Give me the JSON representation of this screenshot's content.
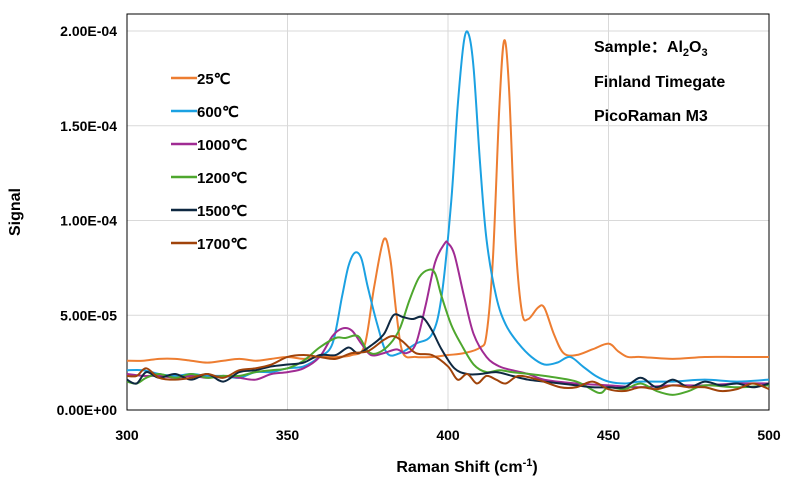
{
  "chart_data": {
    "type": "line",
    "title": "",
    "xlabel": {
      "main": "Raman Shift (cm",
      "sup": "-1",
      "end": ")"
    },
    "ylabel": "Signal",
    "xlim": [
      300,
      500
    ],
    "ylim": [
      0,
      0.000209
    ],
    "y_unit": 1e-05,
    "grid": true,
    "legend_position": "top-left",
    "x_ticks": [
      300,
      350,
      400,
      450,
      500
    ],
    "x_tick_labels": [
      "300",
      "350",
      "400",
      "450",
      "500"
    ],
    "y_ticks": [
      0,
      5e-05,
      0.0001,
      0.00015,
      0.0002
    ],
    "y_tick_labels": [
      "0.00E+00",
      "5.00E-05",
      "1.00E-04",
      "1.50E-04",
      "2.00E-04"
    ],
    "annotation": {
      "sample_prefix": "Sample：Al",
      "sub1": "2",
      "mid": "O",
      "sub2": "3",
      "line2": "Finland Timegate",
      "line3": "PicoRaman M3"
    },
    "series": [
      {
        "name": "25℃",
        "color": "#ED7D31",
        "x": [
          300,
          305,
          310,
          315,
          320,
          325,
          330,
          335,
          340,
          345,
          350,
          355,
          360,
          365,
          370,
          374,
          377,
          380,
          382,
          384,
          386,
          390,
          395,
          400,
          405,
          410,
          412,
          414,
          416,
          417.5,
          419,
          421,
          423,
          425,
          428,
          430,
          433,
          436,
          440,
          445,
          450,
          453,
          456,
          460,
          470,
          480,
          490,
          500
        ],
        "y": [
          2.6,
          2.6,
          2.7,
          2.7,
          2.6,
          2.5,
          2.6,
          2.7,
          2.6,
          2.7,
          2.8,
          2.7,
          2.8,
          2.8,
          2.9,
          3.4,
          6.5,
          9.0,
          8.0,
          5.0,
          3.0,
          2.8,
          2.8,
          2.9,
          3.0,
          3.3,
          4.0,
          8.0,
          16.0,
          19.5,
          17.0,
          9.0,
          5.2,
          4.8,
          5.4,
          5.4,
          4.0,
          3.0,
          2.9,
          3.2,
          3.5,
          3.1,
          2.8,
          2.8,
          2.7,
          2.8,
          2.8,
          2.8
        ]
      },
      {
        "name": "600℃",
        "color": "#1BA1E2",
        "x": [
          300,
          305,
          310,
          315,
          320,
          325,
          330,
          335,
          340,
          345,
          350,
          355,
          360,
          364,
          367,
          369,
          371,
          373,
          375,
          378,
          381,
          385,
          390,
          395,
          398,
          401,
          403,
          405,
          406.5,
          408,
          410,
          412,
          415,
          418,
          422,
          426,
          430,
          434,
          438,
          442,
          446,
          450,
          455,
          460,
          470,
          480,
          490,
          500
        ],
        "y": [
          2.1,
          2.1,
          1.9,
          1.8,
          1.9,
          1.8,
          1.8,
          1.7,
          2.0,
          2.0,
          2.2,
          2.3,
          2.8,
          3.5,
          6.0,
          7.6,
          8.3,
          8.0,
          6.5,
          4.5,
          3.0,
          3.0,
          3.5,
          4.0,
          6.0,
          11.0,
          16.0,
          19.5,
          19.8,
          18.0,
          13.0,
          9.0,
          6.0,
          4.5,
          3.5,
          2.8,
          2.4,
          2.5,
          2.8,
          2.3,
          1.8,
          1.5,
          1.4,
          1.5,
          1.5,
          1.6,
          1.5,
          1.6
        ]
      },
      {
        "name": "1000℃",
        "color": "#A02B93",
        "x": [
          300,
          305,
          310,
          315,
          320,
          325,
          330,
          335,
          340,
          345,
          350,
          355,
          360,
          364,
          367,
          370,
          373,
          376,
          380,
          384,
          387,
          390,
          393,
          396,
          399,
          400,
          402,
          405,
          408,
          412,
          416,
          420,
          425,
          430,
          440,
          450,
          460,
          470,
          480,
          490,
          500
        ],
        "y": [
          1.9,
          1.8,
          1.8,
          1.7,
          1.8,
          1.7,
          1.8,
          1.7,
          1.6,
          1.9,
          2.0,
          2.2,
          2.8,
          3.9,
          4.3,
          4.2,
          3.5,
          2.9,
          3.0,
          3.2,
          3.0,
          3.5,
          5.5,
          7.8,
          8.8,
          8.8,
          8.2,
          6.0,
          4.0,
          2.8,
          2.3,
          2.1,
          1.9,
          1.6,
          1.4,
          1.3,
          1.2,
          1.3,
          1.3,
          1.4,
          1.4
        ]
      },
      {
        "name": "1200℃",
        "color": "#4EA72E",
        "x": [
          300,
          303,
          306,
          310,
          315,
          320,
          325,
          330,
          335,
          340,
          345,
          350,
          355,
          360,
          365,
          368,
          372,
          375,
          378,
          382,
          385,
          388,
          391,
          394,
          396,
          398,
          401,
          404,
          408,
          412,
          416,
          420,
          430,
          440,
          447,
          450,
          455,
          460,
          465,
          470,
          475,
          480,
          490,
          500
        ],
        "y": [
          1.5,
          1.4,
          1.7,
          1.9,
          1.7,
          1.9,
          1.7,
          1.8,
          1.8,
          2.0,
          2.1,
          2.2,
          2.6,
          3.3,
          3.8,
          3.8,
          3.9,
          3.1,
          3.0,
          3.5,
          4.3,
          5.8,
          7.0,
          7.4,
          7.2,
          6.0,
          4.5,
          3.5,
          2.4,
          2.0,
          2.1,
          2.0,
          1.8,
          1.5,
          0.9,
          1.2,
          1.1,
          1.4,
          1.0,
          0.8,
          1.0,
          1.3,
          1.2,
          1.3
        ]
      },
      {
        "name": "1500℃",
        "color": "#0E2841",
        "x": [
          300,
          303,
          306,
          310,
          315,
          320,
          325,
          330,
          335,
          340,
          345,
          350,
          355,
          360,
          365,
          369,
          372,
          376,
          380,
          383,
          386,
          389,
          392,
          395,
          398,
          402,
          406,
          410,
          415,
          420,
          425,
          430,
          435,
          440,
          445,
          450,
          455,
          460,
          465,
          470,
          475,
          480,
          485,
          490,
          495,
          500
        ],
        "y": [
          1.6,
          1.4,
          2.0,
          1.7,
          1.9,
          1.6,
          1.9,
          1.5,
          2.0,
          2.1,
          2.3,
          2.4,
          2.5,
          2.9,
          2.9,
          3.3,
          3.0,
          3.4,
          4.0,
          5.0,
          4.9,
          4.8,
          4.9,
          4.2,
          3.2,
          2.2,
          1.9,
          1.9,
          2.0,
          1.8,
          1.6,
          1.5,
          1.4,
          1.3,
          1.2,
          1.2,
          1.2,
          1.7,
          1.2,
          1.6,
          1.2,
          1.5,
          1.3,
          1.4,
          1.2,
          1.4
        ]
      },
      {
        "name": "1700℃",
        "color": "#A0430A",
        "x": [
          300,
          303,
          306,
          310,
          315,
          320,
          325,
          330,
          335,
          340,
          345,
          350,
          355,
          360,
          365,
          370,
          375,
          380,
          383,
          386,
          390,
          395,
          400,
          403,
          406,
          409,
          412,
          415,
          418,
          422,
          428,
          435,
          440,
          445,
          450,
          455,
          460,
          465,
          470,
          475,
          480,
          485,
          490,
          495,
          500
        ],
        "y": [
          1.8,
          1.8,
          2.2,
          1.7,
          1.6,
          1.7,
          1.9,
          1.7,
          2.1,
          2.2,
          2.4,
          2.8,
          2.9,
          2.8,
          2.7,
          3.0,
          3.1,
          3.7,
          3.9,
          3.6,
          3.0,
          2.9,
          2.3,
          1.6,
          1.9,
          1.4,
          1.8,
          1.6,
          1.4,
          1.8,
          1.6,
          1.2,
          1.2,
          1.5,
          1.1,
          1.0,
          1.2,
          1.1,
          1.3,
          1.2,
          1.2,
          1.0,
          1.1,
          1.4,
          1.1
        ]
      }
    ]
  }
}
